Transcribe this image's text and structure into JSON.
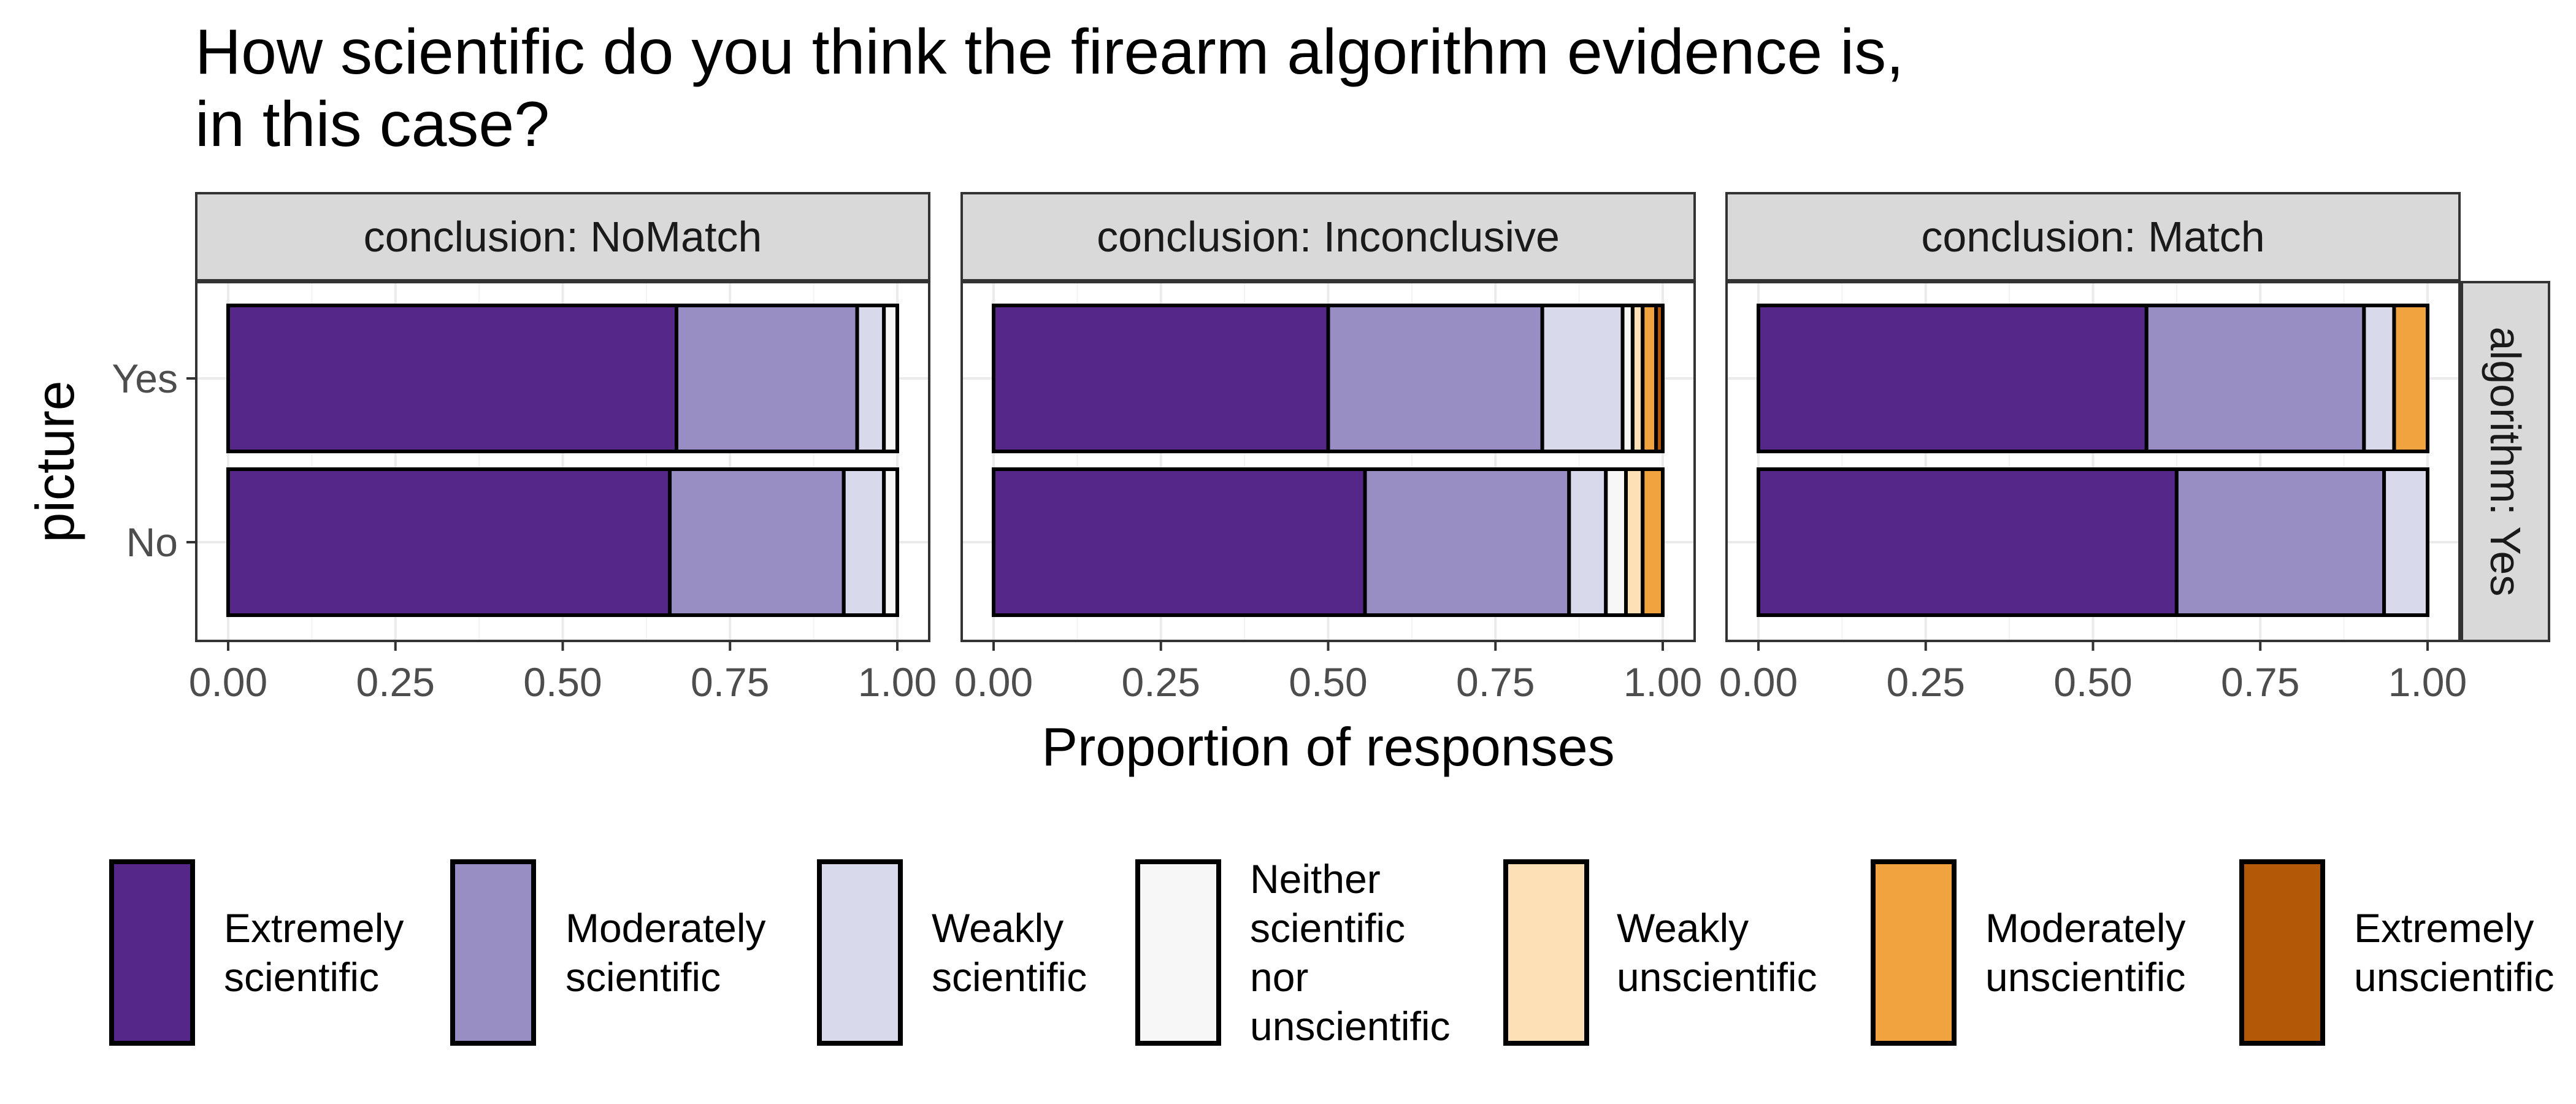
{
  "chart_data": {
    "type": "bar",
    "orientation": "horizontal",
    "stacked": true,
    "title": "How scientific do you think the firearm algorithm evidence is,\n in this case?",
    "xlabel": "Proportion of responses",
    "ylabel": "picture",
    "xlim": [
      0,
      1
    ],
    "xticks": [
      "0.00",
      "0.25",
      "0.50",
      "0.75",
      "1.00"
    ],
    "categories": [
      "Yes",
      "No"
    ],
    "grid": true,
    "legend_position": "bottom",
    "row_strip": "algorithm: Yes",
    "levels": [
      {
        "name": "Extremely scientific",
        "color": "#542788"
      },
      {
        "name": "Moderately scientific",
        "color": "#998ec3"
      },
      {
        "name": "Weakly scientific",
        "color": "#d8daeb"
      },
      {
        "name": "Neither scientific nor unscientific",
        "color": "#f7f7f7"
      },
      {
        "name": "Weakly unscientific",
        "color": "#fee0b6"
      },
      {
        "name": "Moderately unscientific",
        "color": "#f1a340"
      },
      {
        "name": "Extremely unscientific",
        "color": "#b35806"
      }
    ],
    "panels": [
      {
        "strip": "conclusion: NoMatch",
        "rows": [
          {
            "picture": "Yes",
            "values": [
              0.67,
              0.27,
              0.04,
              0.02,
              0.0,
              0.0,
              0.0
            ]
          },
          {
            "picture": "No",
            "values": [
              0.66,
              0.26,
              0.06,
              0.02,
              0.0,
              0.0,
              0.0
            ]
          }
        ]
      },
      {
        "strip": "conclusion: Inconclusive",
        "rows": [
          {
            "picture": "Yes",
            "values": [
              0.5,
              0.32,
              0.12,
              0.015,
              0.015,
              0.02,
              0.01
            ]
          },
          {
            "picture": "No",
            "values": [
              0.555,
              0.305,
              0.055,
              0.03,
              0.025,
              0.03,
              0.0
            ]
          }
        ]
      },
      {
        "strip": "conclusion: Match",
        "rows": [
          {
            "picture": "Yes",
            "values": [
              0.58,
              0.325,
              0.045,
              0.0,
              0.0,
              0.05,
              0.0
            ]
          },
          {
            "picture": "No",
            "values": [
              0.625,
              0.31,
              0.065,
              0.0,
              0.0,
              0.0,
              0.0
            ]
          }
        ]
      }
    ]
  }
}
